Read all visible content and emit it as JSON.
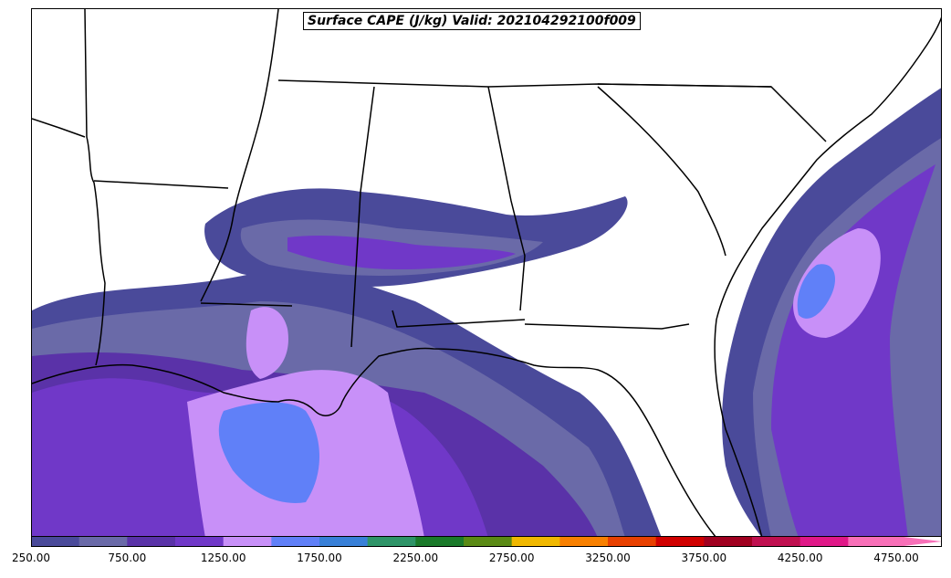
{
  "title": "Surface CAPE (J/kg) Valid: 202104292100f009",
  "colorbar": {
    "colors": [
      "#4a4a9a",
      "#6a6aa8",
      "#5a32a8",
      "#7038c8",
      "#c890f8",
      "#6080f8",
      "#3880d8",
      "#2e9468",
      "#1a7a2a",
      "#5a8a14",
      "#f0b800",
      "#f88000",
      "#e84000",
      "#d00000",
      "#a00020",
      "#c01050",
      "#e01888",
      "#f870b8"
    ],
    "extend_color": "#f870b8",
    "labels": [
      "250.00",
      "750.00",
      "1250.00",
      "1750.00",
      "2250.00",
      "2750.00",
      "3250.00",
      "3750.00",
      "4250.00",
      "4750.00"
    ]
  },
  "legend_levels": [
    250,
    500,
    750,
    1000,
    1250,
    1500,
    1750,
    2000,
    2250,
    2500,
    2750,
    3000,
    3250,
    3500,
    3750,
    4000,
    4250,
    4500,
    4750
  ]
}
